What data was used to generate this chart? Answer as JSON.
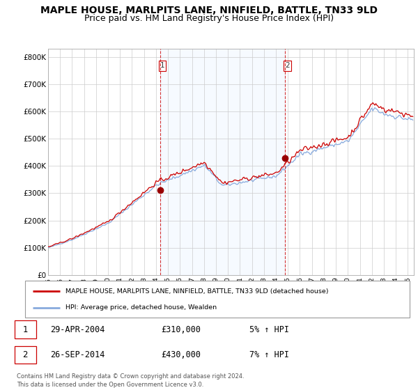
{
  "title": "MAPLE HOUSE, MARLPITS LANE, NINFIELD, BATTLE, TN33 9LD",
  "subtitle": "Price paid vs. HM Land Registry's House Price Index (HPI)",
  "title_fontsize": 10,
  "subtitle_fontsize": 9,
  "ylabel_ticks": [
    "£0",
    "£100K",
    "£200K",
    "£300K",
    "£400K",
    "£500K",
    "£600K",
    "£700K",
    "£800K"
  ],
  "ytick_values": [
    0,
    100000,
    200000,
    300000,
    400000,
    500000,
    600000,
    700000,
    800000
  ],
  "ylim": [
    0,
    830000
  ],
  "xlim_start": 1995.0,
  "xlim_end": 2025.5,
  "xtick_years": [
    1995,
    1996,
    1997,
    1998,
    1999,
    2000,
    2001,
    2002,
    2003,
    2004,
    2005,
    2006,
    2007,
    2008,
    2009,
    2010,
    2011,
    2012,
    2013,
    2014,
    2015,
    2016,
    2017,
    2018,
    2019,
    2020,
    2021,
    2022,
    2023,
    2024,
    2025
  ],
  "background_color": "#ffffff",
  "grid_color": "#cccccc",
  "line1_color": "#cc0000",
  "line2_color": "#88aadd",
  "fill_color": "#ddeeff",
  "marker1_color": "#990000",
  "sale1_x": 2004.33,
  "sale1_y": 310000,
  "sale1_label": "1",
  "sale2_x": 2014.75,
  "sale2_y": 430000,
  "sale2_label": "2",
  "vline_color": "#cc0000",
  "legend_line1": "MAPLE HOUSE, MARLPITS LANE, NINFIELD, BATTLE, TN33 9LD (detached house)",
  "legend_line2": "HPI: Average price, detached house, Wealden",
  "table_row1": [
    "1",
    "29-APR-2004",
    "£310,000",
    "5% ↑ HPI"
  ],
  "table_row2": [
    "2",
    "26-SEP-2014",
    "£430,000",
    "7% ↑ HPI"
  ],
  "footer": "Contains HM Land Registry data © Crown copyright and database right 2024.\nThis data is licensed under the Open Government Licence v3.0."
}
